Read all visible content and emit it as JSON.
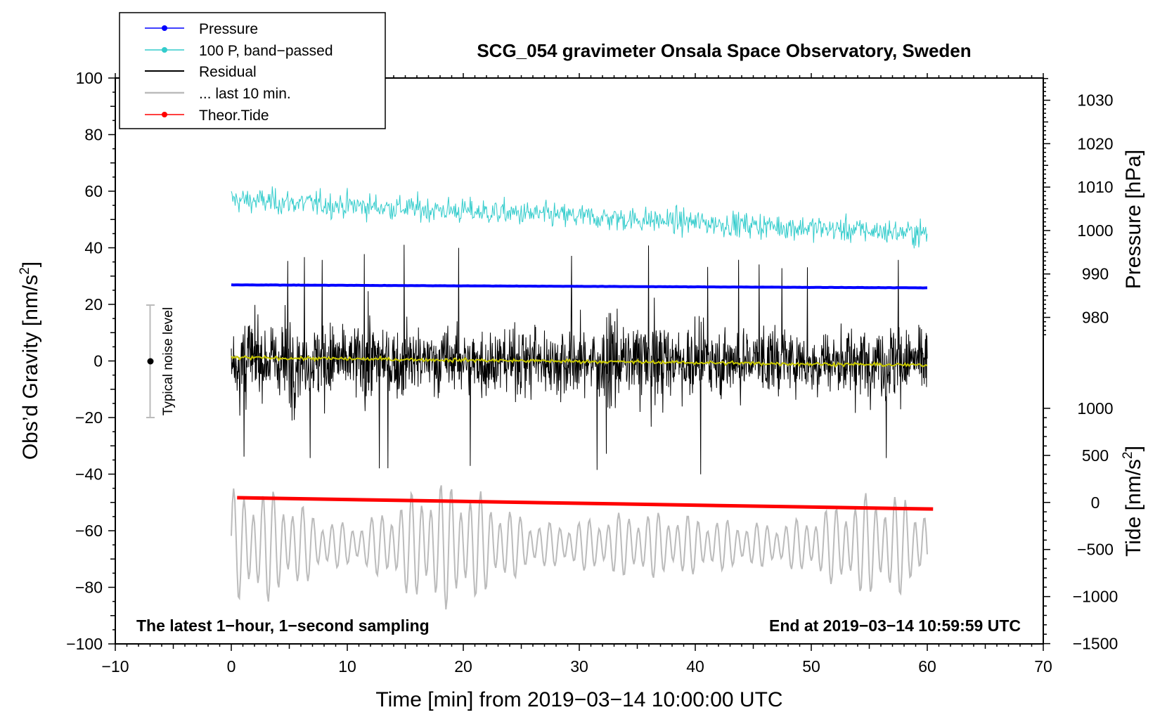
{
  "chart_data": {
    "type": "line",
    "title": "SCG_054 gravimeter Onsala Space Observatory, Sweden",
    "xlabel": "Time [min] from 2019−03−14 10:00:00 UTC",
    "ylabel_left_main": "Obs’d Gravity [nm/s",
    "ylabel_left_sup": "2",
    "ylabel_left_close": "]",
    "ylabel_right_pressure": "Pressure [hPa]",
    "ylabel_right_tide_main": "Tide [nm/s",
    "ylabel_right_tide_sup": "2",
    "ylabel_right_tide_close": "]",
    "xlim": [
      -10,
      70
    ],
    "ylim_gravity": [
      -100,
      100
    ],
    "x_ticks": [
      "−10",
      "0",
      "10",
      "20",
      "30",
      "40",
      "50",
      "60",
      "70"
    ],
    "x_tick_values": [
      -10,
      0,
      10,
      20,
      30,
      40,
      50,
      60,
      70
    ],
    "y_ticks_gravity": [
      "100",
      "80",
      "60",
      "40",
      "20",
      "0",
      "−20",
      "−40",
      "−60",
      "−80",
      "−100"
    ],
    "y_tick_values_gravity": [
      100,
      80,
      60,
      40,
      20,
      0,
      -20,
      -40,
      -60,
      -80,
      -100
    ],
    "pressure_axis": {
      "ticks": [
        "1030",
        "1020",
        "1010",
        "1000",
        "990",
        "980"
      ],
      "values": [
        1030,
        1020,
        1010,
        1000,
        990,
        980
      ],
      "gravity_at_1000": 46.1,
      "gravity_per_hpa": 1.535
    },
    "tide_axis": {
      "ticks": [
        "1000",
        "500",
        "0",
        "−500",
        "−1000",
        "−1500"
      ],
      "values": [
        1000,
        500,
        0,
        -500,
        -1000,
        -1500
      ],
      "gravity_at_0": -50.0,
      "gravity_per_unit": 0.03327
    },
    "series": [
      {
        "name": "Pressure",
        "color": "#0000ff",
        "pressure_hpa_start": 987.5,
        "pressure_hpa_end": 986.8,
        "x_start": 0,
        "x_end": 60
      },
      {
        "name": "100 P, band−passed",
        "color": "#33cccc",
        "center_gravity_start": 57,
        "center_gravity_end": 45,
        "amplitude": 3.5
      },
      {
        "name": "Residual",
        "color": "#000000",
        "mean_gravity": 0,
        "typical_amplitude": 12,
        "max_excursion": 42
      },
      {
        "name": "... last 10 min.",
        "color": "#bbbbbb",
        "center_gravity": -65,
        "amplitude_range": [
          8,
          25
        ]
      },
      {
        "name": "Theor.Tide",
        "color": "#ff0000",
        "tide_start": 50,
        "tide_end": -70,
        "x_start": 0.5,
        "x_end": 60.5
      }
    ],
    "smoothed_residual": {
      "color": "#c8c800",
      "start": 1.2,
      "end": -1.5
    },
    "noise_bar": {
      "label": "Typical noise level",
      "x": -7,
      "center": 0,
      "half_range": 20
    },
    "annotation_left": "The latest 1−hour, 1−second sampling",
    "annotation_right": "End at 2019−03−14 10:59:59 UTC",
    "legend_position": "top-left"
  }
}
